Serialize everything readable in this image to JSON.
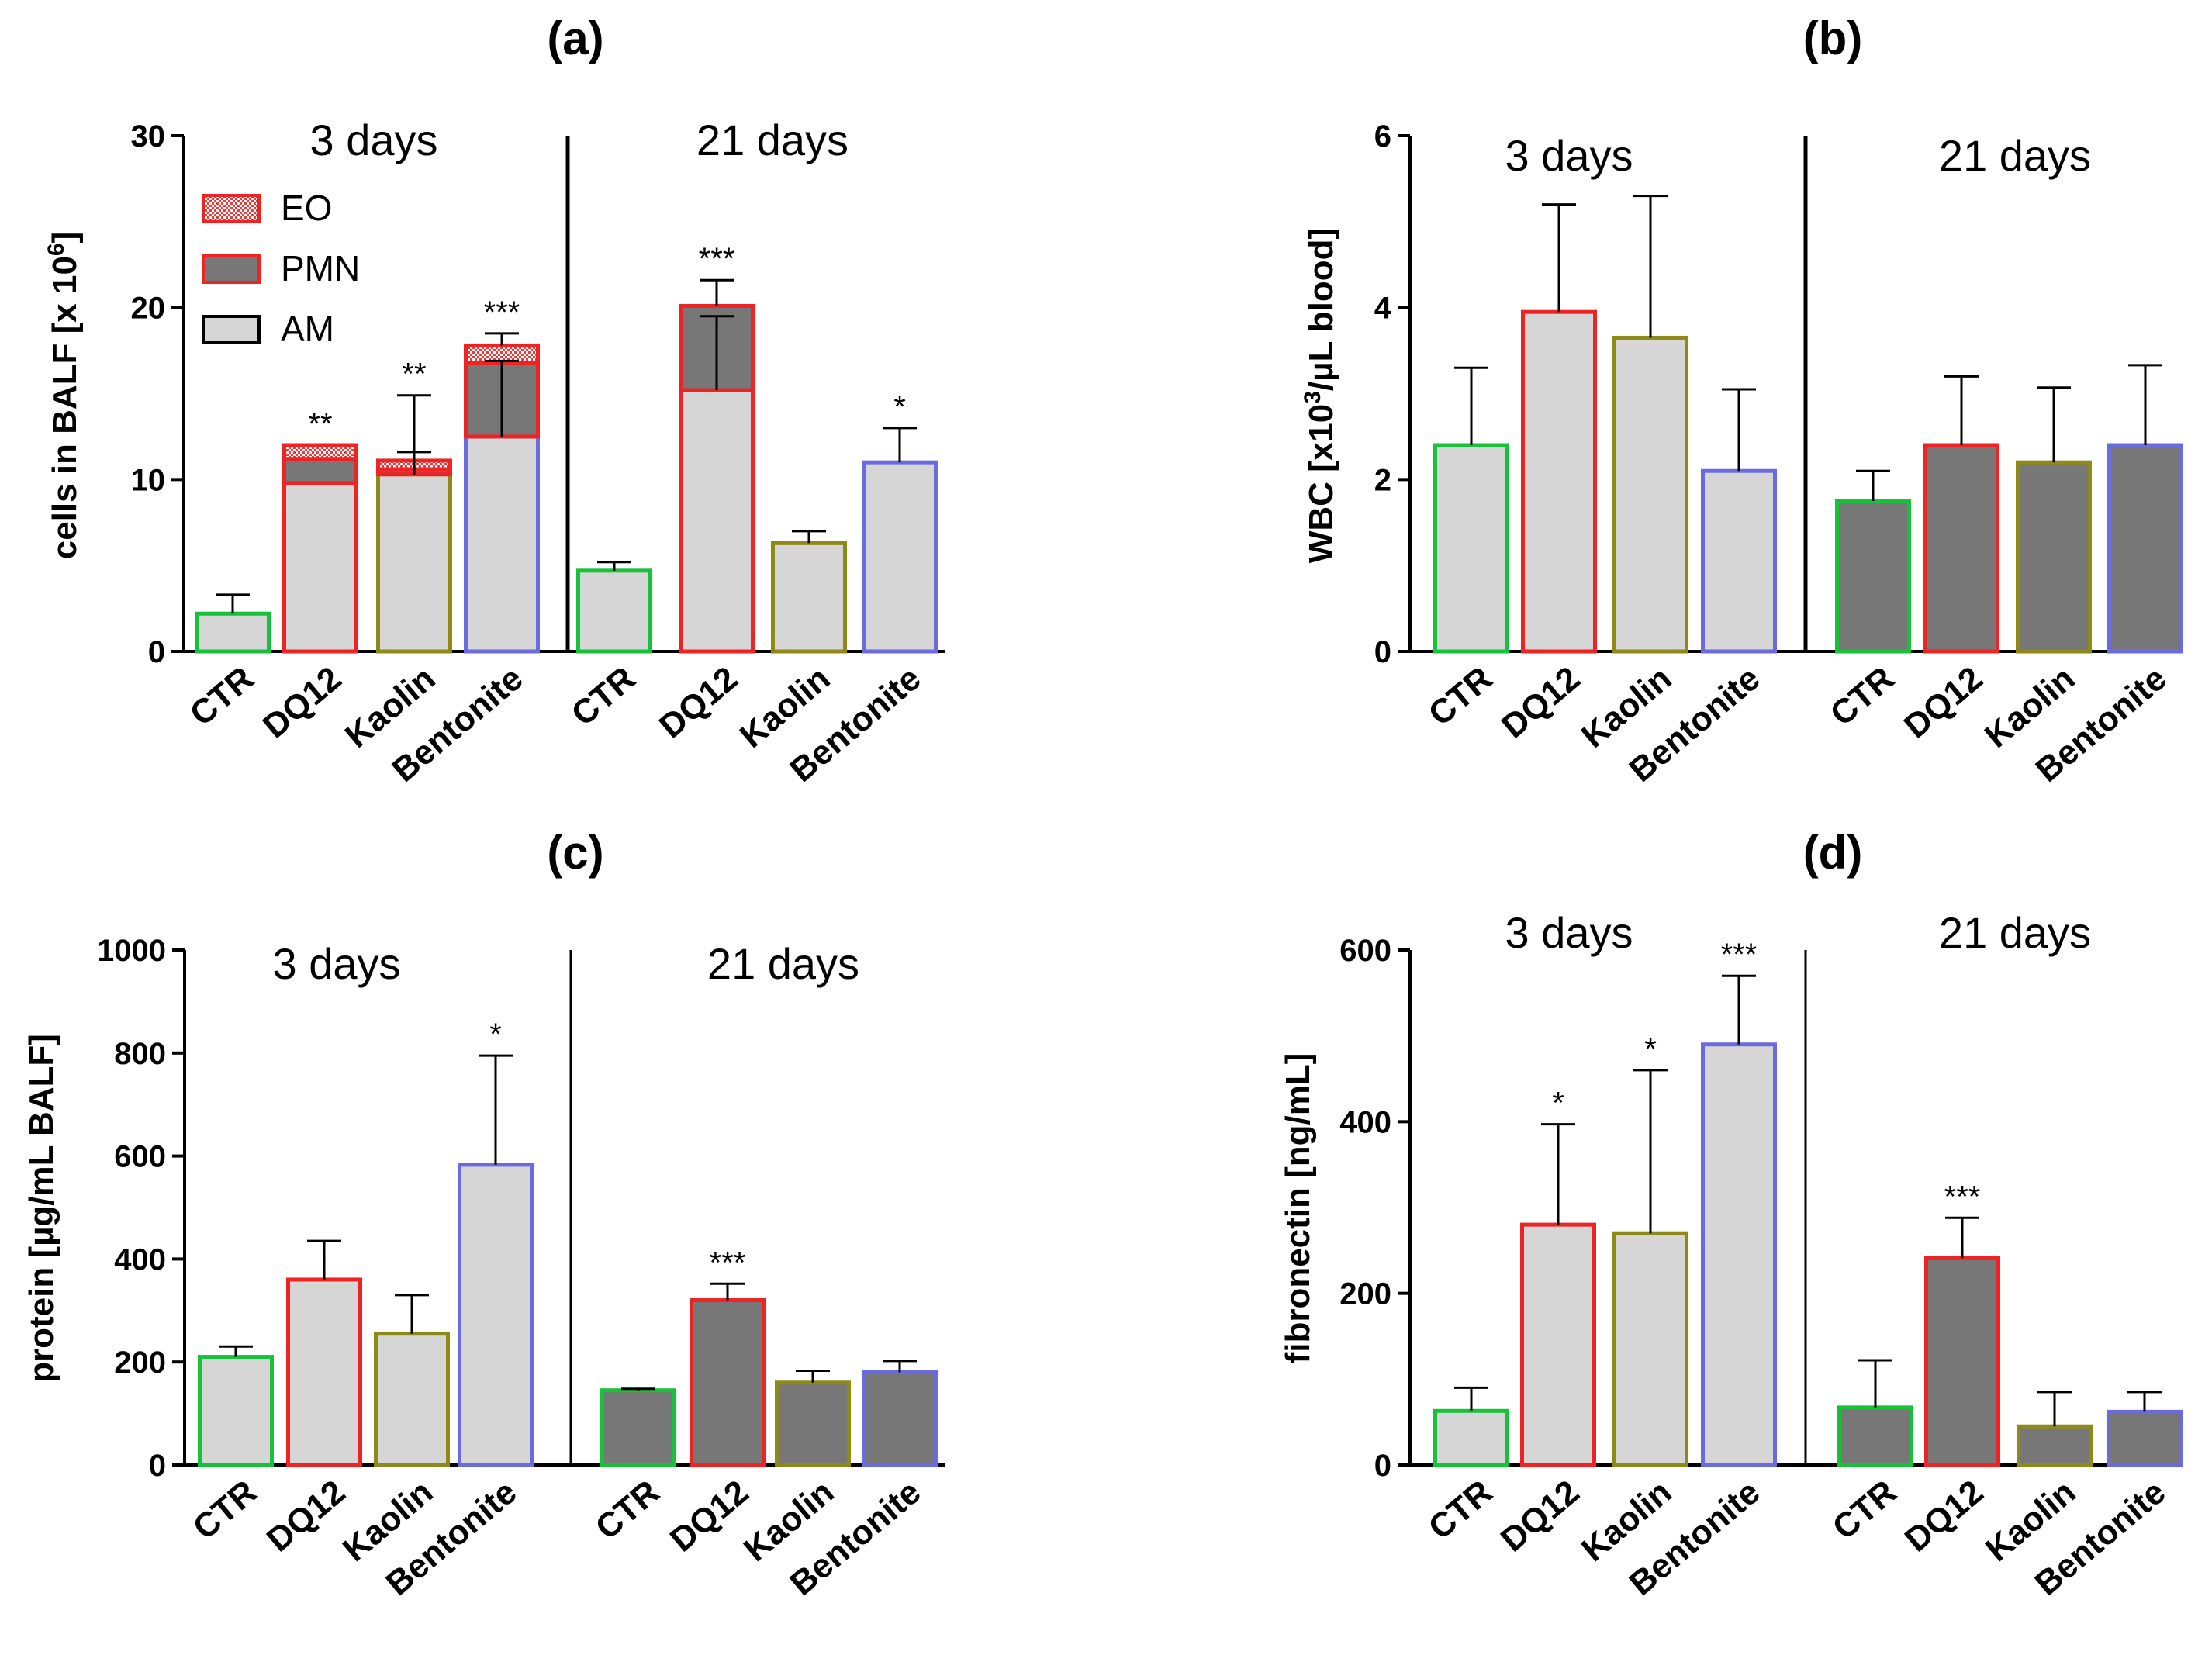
{
  "figure": {
    "name": "four-panel bar chart figure"
  },
  "colors": {
    "CTR": "#18c13a",
    "DQ12": "#ee2424",
    "Kaolin": "#8f8a17",
    "Bentonite": "#6b6be0",
    "light_fill": "#d6d6d6",
    "dark_fill": "#777777",
    "eo_fill": "#f03a3a"
  },
  "chart_data": [
    {
      "panel": "a",
      "type": "bar",
      "title": "(a)",
      "ylabel": "cells in BALF [x 10",
      "ylabel_sup": "6",
      "ylabel_tail": "]",
      "ylim": [
        0,
        30
      ],
      "yticks": [
        0,
        10,
        20,
        30
      ],
      "ytick_labels": [
        "0",
        "10",
        "20",
        "30"
      ],
      "groups": [
        "3 days",
        "21 days"
      ],
      "categories": [
        "CTR",
        "DQ12",
        "Kaolin",
        "Bentonite"
      ],
      "stacked": true,
      "legend": {
        "position": "top-left",
        "entries": [
          "EO",
          "PMN",
          "AM"
        ]
      },
      "series": [
        {
          "name": "AM",
          "values": [
            [
              2.2,
              9.8,
              10.3,
              12.5
            ],
            [
              4.7,
              15.2,
              6.3,
              11.0
            ]
          ]
        },
        {
          "name": "PMN",
          "values": [
            [
              0,
              1.4,
              0.3,
              4.3
            ],
            [
              0,
              4.9,
              0,
              0
            ]
          ]
        },
        {
          "name": "EO",
          "values": [
            [
              0,
              0.8,
              0.5,
              1.0
            ],
            [
              0,
              0,
              0,
              0
            ]
          ]
        }
      ],
      "errors": [
        [
          {
            "at": 2.2,
            "to": 3.3
          },
          {
            "at": 12.0,
            "to": 12.0
          },
          {
            "at": 11.1,
            "to": 14.9
          },
          {
            "at": 17.8,
            "to": 18.5
          }
        ],
        [
          {
            "at": 4.7,
            "to": 5.2
          },
          {
            "at": 20.1,
            "to": 21.6
          },
          {
            "at": 6.3,
            "to": 7.0
          },
          {
            "at": 11.0,
            "to": 13.0
          }
        ]
      ],
      "extra_errors": [
        {
          "group": 0,
          "cat": 2,
          "at": 10.3,
          "to": 11.6
        },
        {
          "group": 0,
          "cat": 3,
          "at": 12.5,
          "to": 16.9
        },
        {
          "group": 1,
          "cat": 1,
          "at": 15.2,
          "to": 19.5
        }
      ],
      "significance": [
        [
          "",
          "**",
          "**",
          "***"
        ],
        [
          "",
          "***",
          "",
          "*"
        ]
      ],
      "fills": [
        "light",
        "light"
      ],
      "divider": "thick"
    },
    {
      "panel": "b",
      "type": "bar",
      "title": "(b)",
      "ylabel": "WBC [x10",
      "ylabel_sup": "3",
      "ylabel_tail": "/µL blood]",
      "ylim": [
        0,
        6
      ],
      "yticks": [
        0,
        2,
        4,
        6
      ],
      "ytick_labels": [
        "0",
        "2",
        "4",
        "6"
      ],
      "groups": [
        "3 days",
        "21 days"
      ],
      "categories": [
        "CTR",
        "DQ12",
        "Kaolin",
        "Bentonite"
      ],
      "values": [
        [
          2.4,
          3.95,
          3.65,
          2.1
        ],
        [
          1.75,
          2.4,
          2.2,
          2.4
        ]
      ],
      "errors": [
        [
          3.3,
          5.2,
          5.3,
          3.05
        ],
        [
          2.1,
          3.2,
          3.07,
          3.33
        ]
      ],
      "significance": [
        [
          "",
          "",
          "",
          ""
        ],
        [
          "",
          "",
          "",
          ""
        ]
      ],
      "fills": [
        "light",
        "dark"
      ],
      "divider": "thick"
    },
    {
      "panel": "c",
      "type": "bar",
      "title": "(c)",
      "ylabel": "protein [µg/mL BALF]",
      "ylim": [
        0,
        1000
      ],
      "yticks": [
        0,
        200,
        400,
        600,
        800,
        1000
      ],
      "ytick_labels": [
        "0",
        "200",
        "400",
        "600",
        "800",
        "1000"
      ],
      "groups": [
        "3 days",
        "21 days"
      ],
      "categories": [
        "CTR",
        "DQ12",
        "Kaolin",
        "Bentonite"
      ],
      "values": [
        [
          210,
          360,
          255,
          583
        ],
        [
          145,
          320,
          160,
          180
        ]
      ],
      "errors": [
        [
          230,
          435,
          330,
          795
        ],
        [
          148,
          352,
          183,
          202
        ]
      ],
      "significance": [
        [
          "",
          "",
          "",
          "*"
        ],
        [
          "",
          "***",
          "",
          ""
        ]
      ],
      "fills": [
        "light",
        "dark"
      ],
      "divider": "thin"
    },
    {
      "panel": "d",
      "type": "bar",
      "title": "(d)",
      "ylabel": "fibronectin [ng/mL]",
      "ylim": [
        0,
        600
      ],
      "yticks": [
        0,
        200,
        400,
        600
      ],
      "ytick_labels": [
        "0",
        "200",
        "400",
        "600"
      ],
      "groups": [
        "3 days",
        "21 days"
      ],
      "categories": [
        "CTR",
        "DQ12",
        "Kaolin",
        "Bentonite"
      ],
      "values": [
        [
          63,
          280,
          270,
          490
        ],
        [
          67,
          241,
          45,
          62
        ]
      ],
      "errors": [
        [
          90,
          397,
          460,
          570
        ],
        [
          122,
          288,
          85,
          85
        ]
      ],
      "significance": [
        [
          "",
          "*",
          "*",
          "***"
        ],
        [
          "",
          "***",
          "",
          ""
        ]
      ],
      "fills": [
        "light",
        "dark"
      ],
      "divider": "thin"
    }
  ]
}
